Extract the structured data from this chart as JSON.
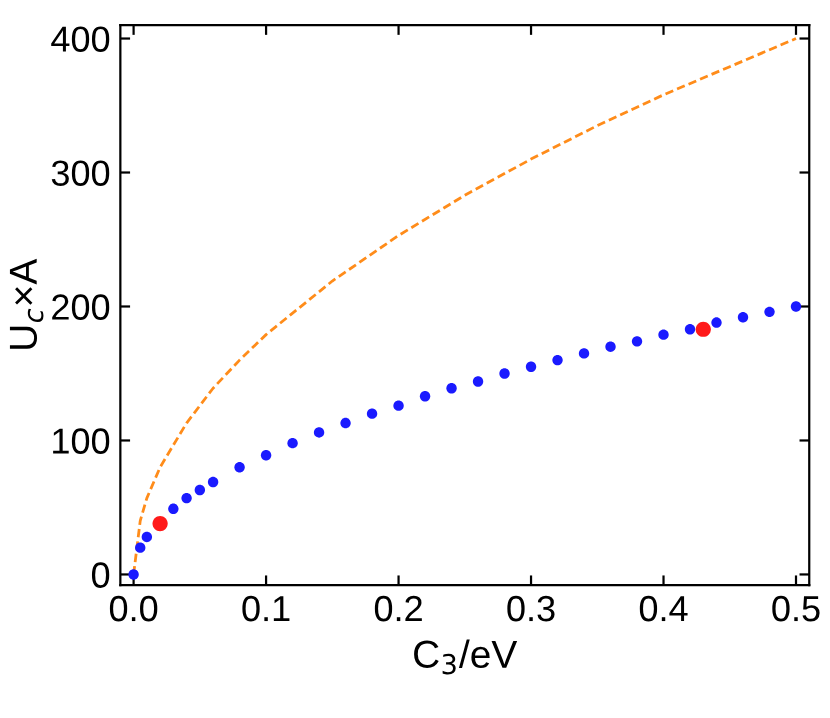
{
  "chart_data": {
    "type": "line",
    "xlabel": "C$_{3}$/eV",
    "ylabel": "U$_{c}$×A",
    "xlim": [
      -0.01,
      0.51
    ],
    "ylim": [
      -8,
      410
    ],
    "xticks": [
      {
        "value": 0,
        "label": "0.0"
      },
      0.1,
      0.2,
      0.3,
      0.4,
      0.5
    ],
    "yticks": [
      0,
      100,
      200,
      300,
      400
    ],
    "grid": false,
    "legend": false,
    "series": [
      {
        "line_style": "dashed",
        "marker": "none",
        "color": "#ff8c1a",
        "x": [
          0,
          0.005,
          0.01,
          0.02,
          0.04,
          0.06,
          0.08,
          0.1,
          0.15,
          0.2,
          0.25,
          0.3,
          0.35,
          0.4,
          0.45,
          0.5
        ],
        "values": [
          0,
          40,
          57,
          80,
          113,
          139,
          160,
          179,
          219,
          253,
          283,
          310,
          335,
          358,
          379,
          400
        ]
      },
      {
        "type": "scatter",
        "marker": "circle",
        "color": "#1a1aff",
        "x": [
          0,
          0.005,
          0.01,
          0.02,
          0.03,
          0.04,
          0.05,
          0.06,
          0.08,
          0.1,
          0.12,
          0.14,
          0.16,
          0.18,
          0.2,
          0.22,
          0.24,
          0.26,
          0.28,
          0.3,
          0.32,
          0.34,
          0.36,
          0.38,
          0.4,
          0.42,
          0.44,
          0.46,
          0.48,
          0.5
        ],
        "values": [
          0,
          20,
          28,
          null,
          49,
          57,
          63,
          69,
          80,
          89,
          98,
          106,
          113,
          120,
          126,
          133,
          139,
          144,
          150,
          155,
          160,
          165,
          170,
          174,
          179,
          183,
          188,
          192,
          196,
          200
        ]
      },
      {
        "type": "scatter",
        "marker": "circle",
        "color": "#ff1a1a",
        "x": [
          0.02,
          0.43
        ],
        "values": [
          38,
          183
        ]
      }
    ]
  }
}
